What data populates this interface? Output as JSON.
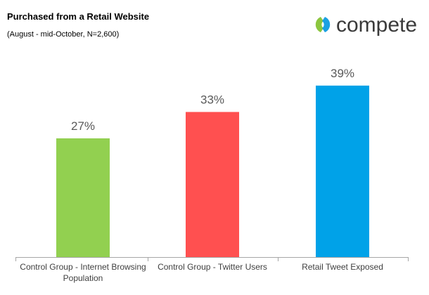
{
  "chart_data": {
    "type": "bar",
    "title": "Purchased from a Retail Website",
    "subtitle": "(August - mid-October, N=2,600)",
    "logo": "compete",
    "categories": [
      "Control Group - Internet Browsing Population",
      "Control Group - Twitter Users",
      "Retail Tweet Exposed"
    ],
    "values": [
      27,
      33,
      39
    ],
    "value_labels": [
      "27%",
      "33%",
      "39%"
    ],
    "colors": [
      "#92d050",
      "#ff5050",
      "#00a2e8"
    ]
  }
}
